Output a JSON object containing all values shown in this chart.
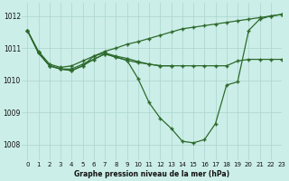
{
  "title": "Graphe pression niveau de la mer (hPa)",
  "background_color": "#cceee8",
  "grid_color": "#aad4ce",
  "line_color": "#2d6a2d",
  "marker": "+",
  "xlim": [
    -0.5,
    23
  ],
  "ylim": [
    1007.5,
    1012.4
  ],
  "yticks": [
    1008,
    1009,
    1010,
    1011,
    1012
  ],
  "xticks": [
    0,
    1,
    2,
    3,
    4,
    5,
    6,
    7,
    8,
    9,
    10,
    11,
    12,
    13,
    14,
    15,
    16,
    17,
    18,
    19,
    20,
    21,
    22,
    23
  ],
  "series1_x": [
    0,
    1,
    2,
    3,
    4,
    5,
    6,
    7,
    8,
    9,
    10,
    11,
    12,
    13,
    14,
    15,
    16,
    17,
    18,
    19,
    20,
    21,
    22,
    23
  ],
  "series1_y": [
    1011.55,
    1010.85,
    1010.45,
    1010.35,
    1010.3,
    1010.45,
    1010.65,
    1010.82,
    1010.72,
    1010.62,
    1010.05,
    1009.3,
    1008.82,
    1008.5,
    1008.1,
    1008.05,
    1008.15,
    1008.65,
    1009.85,
    1009.95,
    1011.55,
    1011.9,
    1012.0,
    1012.05
  ],
  "series2_x": [
    0,
    1,
    2,
    3,
    4,
    5,
    6,
    7,
    8,
    9,
    10,
    11,
    12,
    13,
    14,
    15,
    16,
    17,
    18,
    19,
    20,
    21,
    22,
    23
  ],
  "series2_y": [
    1011.55,
    1010.85,
    1010.45,
    1010.35,
    1010.35,
    1010.5,
    1010.65,
    1010.82,
    1010.72,
    1010.62,
    1010.55,
    1010.5,
    1010.45,
    1010.45,
    1010.45,
    1010.45,
    1010.45,
    1010.45,
    1010.45,
    1010.6,
    1010.65,
    1010.65,
    1010.65,
    1010.65
  ],
  "series3_x": [
    0,
    1,
    2,
    3,
    4,
    5,
    6,
    7,
    8,
    9,
    10,
    11,
    12,
    13
  ],
  "series3_y": [
    1011.55,
    1010.85,
    1010.45,
    1010.35,
    1010.3,
    1010.45,
    1010.75,
    1010.85,
    1010.75,
    1010.68,
    1010.58,
    1010.5,
    1010.45,
    1010.45
  ],
  "series4_x": [
    0,
    1,
    2,
    3,
    4,
    5,
    6,
    7,
    8,
    9,
    10,
    11,
    12,
    13,
    14,
    15,
    16,
    17,
    18,
    19,
    20,
    21,
    22,
    23
  ],
  "series4_y": [
    1011.55,
    1010.9,
    1010.5,
    1010.4,
    1010.45,
    1010.6,
    1010.75,
    1010.9,
    1011.0,
    1011.12,
    1011.2,
    1011.3,
    1011.4,
    1011.5,
    1011.6,
    1011.65,
    1011.7,
    1011.75,
    1011.8,
    1011.85,
    1011.9,
    1011.95,
    1012.0,
    1012.05
  ]
}
